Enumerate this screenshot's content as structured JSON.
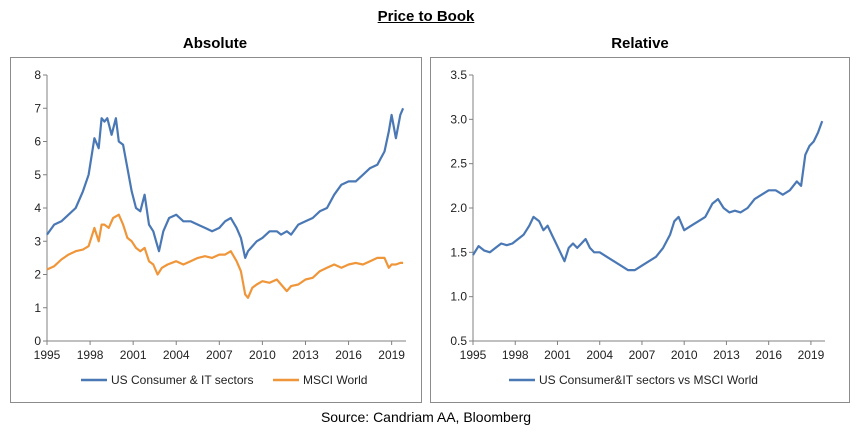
{
  "title": "Price to Book",
  "source": "Source: Candriam AA, Bloomberg",
  "colors": {
    "blue": "#4a78b5",
    "orange": "#f0963a",
    "axis": "#808080"
  },
  "chart_data": [
    {
      "type": "line",
      "title": "Absolute",
      "xlim": [
        1995,
        2020
      ],
      "ylim": [
        0,
        8
      ],
      "x_ticks": [
        1995,
        1998,
        2001,
        2004,
        2007,
        2010,
        2013,
        2016,
        2019
      ],
      "y_ticks": [
        0,
        1,
        2,
        3,
        4,
        5,
        6,
        7,
        8
      ],
      "y_tick_labels": [
        "0",
        "1",
        "2",
        "3",
        "4",
        "5",
        "6",
        "7",
        "8"
      ],
      "legend": "bottom",
      "grid": false,
      "series": [
        {
          "name": "US Consumer & IT sectors",
          "color": "#4a78b5",
          "x": [
            1995.0,
            1995.5,
            1996.0,
            1996.5,
            1997.0,
            1997.5,
            1997.9,
            1998.3,
            1998.6,
            1998.8,
            1999.0,
            1999.2,
            1999.5,
            1999.8,
            2000.0,
            2000.3,
            2000.6,
            2000.9,
            2001.2,
            2001.5,
            2001.8,
            2002.1,
            2002.4,
            2002.6,
            2002.8,
            2003.1,
            2003.5,
            2004.0,
            2004.5,
            2005.0,
            2005.5,
            2006.0,
            2006.5,
            2007.0,
            2007.4,
            2007.8,
            2008.2,
            2008.5,
            2008.8,
            2009.0,
            2009.2,
            2009.6,
            2010.0,
            2010.5,
            2011.0,
            2011.3,
            2011.7,
            2012.0,
            2012.5,
            2013.0,
            2013.5,
            2014.0,
            2014.5,
            2015.0,
            2015.5,
            2016.0,
            2016.5,
            2017.0,
            2017.5,
            2018.0,
            2018.5,
            2018.8,
            2019.0,
            2019.3,
            2019.6,
            2019.8
          ],
          "values": [
            3.2,
            3.5,
            3.6,
            3.8,
            4.0,
            4.5,
            5.0,
            6.1,
            5.8,
            6.7,
            6.6,
            6.7,
            6.2,
            6.7,
            6.0,
            5.9,
            5.2,
            4.5,
            4.0,
            3.9,
            4.4,
            3.5,
            3.3,
            3.0,
            2.7,
            3.3,
            3.7,
            3.8,
            3.6,
            3.6,
            3.5,
            3.4,
            3.3,
            3.4,
            3.6,
            3.7,
            3.4,
            3.1,
            2.5,
            2.7,
            2.8,
            3.0,
            3.1,
            3.3,
            3.3,
            3.2,
            3.3,
            3.2,
            3.5,
            3.6,
            3.7,
            3.9,
            4.0,
            4.4,
            4.7,
            4.8,
            4.8,
            5.0,
            5.2,
            5.3,
            5.7,
            6.3,
            6.8,
            6.1,
            6.8,
            7.0
          ]
        },
        {
          "name": "MSCI World",
          "color": "#f0963a",
          "x": [
            1995.0,
            1995.5,
            1996.0,
            1996.5,
            1997.0,
            1997.5,
            1997.9,
            1998.3,
            1998.6,
            1998.8,
            1999.0,
            1999.3,
            1999.6,
            2000.0,
            2000.3,
            2000.6,
            2000.9,
            2001.2,
            2001.5,
            2001.8,
            2002.1,
            2002.4,
            2002.7,
            2003.0,
            2003.4,
            2004.0,
            2004.5,
            2005.0,
            2005.5,
            2006.0,
            2006.5,
            2007.0,
            2007.4,
            2007.8,
            2008.2,
            2008.5,
            2008.8,
            2009.0,
            2009.3,
            2009.6,
            2010.0,
            2010.5,
            2011.0,
            2011.3,
            2011.7,
            2012.0,
            2012.5,
            2013.0,
            2013.5,
            2014.0,
            2014.5,
            2015.0,
            2015.5,
            2016.0,
            2016.5,
            2017.0,
            2017.5,
            2018.0,
            2018.5,
            2018.8,
            2019.0,
            2019.3,
            2019.6,
            2019.8
          ],
          "values": [
            2.15,
            2.25,
            2.45,
            2.6,
            2.7,
            2.75,
            2.85,
            3.4,
            3.0,
            3.5,
            3.5,
            3.4,
            3.7,
            3.8,
            3.5,
            3.1,
            3.0,
            2.8,
            2.7,
            2.8,
            2.4,
            2.3,
            2.0,
            2.2,
            2.3,
            2.4,
            2.3,
            2.4,
            2.5,
            2.55,
            2.5,
            2.6,
            2.6,
            2.7,
            2.4,
            2.1,
            1.4,
            1.3,
            1.6,
            1.7,
            1.8,
            1.75,
            1.85,
            1.7,
            1.5,
            1.65,
            1.7,
            1.85,
            1.9,
            2.1,
            2.2,
            2.3,
            2.2,
            2.3,
            2.35,
            2.3,
            2.4,
            2.5,
            2.5,
            2.2,
            2.3,
            2.3,
            2.35,
            2.35
          ]
        }
      ]
    },
    {
      "type": "line",
      "title": "Relative",
      "xlim": [
        1995,
        2020
      ],
      "ylim": [
        0.5,
        3.5
      ],
      "x_ticks": [
        1995,
        1998,
        2001,
        2004,
        2007,
        2010,
        2013,
        2016,
        2019
      ],
      "y_ticks": [
        0.5,
        1.0,
        1.5,
        2.0,
        2.5,
        3.0,
        3.5
      ],
      "y_tick_labels": [
        "0.5",
        "1.0",
        "1.5",
        "2.0",
        "2.5",
        "3.0",
        "3.5"
      ],
      "legend": "bottom",
      "grid": false,
      "series": [
        {
          "name": "US Consumer&IT sectors vs MSCI World",
          "color": "#4a78b5",
          "x": [
            1995.0,
            1995.4,
            1995.8,
            1996.2,
            1996.6,
            1997.0,
            1997.4,
            1997.8,
            1998.2,
            1998.6,
            1999.0,
            1999.3,
            1999.7,
            2000.0,
            2000.3,
            2000.6,
            2000.9,
            2001.2,
            2001.5,
            2001.8,
            2002.1,
            2002.4,
            2002.7,
            2003.0,
            2003.3,
            2003.6,
            2004.0,
            2004.5,
            2005.0,
            2005.5,
            2006.0,
            2006.5,
            2007.0,
            2007.5,
            2008.0,
            2008.5,
            2009.0,
            2009.3,
            2009.6,
            2010.0,
            2010.5,
            2011.0,
            2011.5,
            2012.0,
            2012.4,
            2012.8,
            2013.2,
            2013.6,
            2014.0,
            2014.5,
            2015.0,
            2015.5,
            2016.0,
            2016.5,
            2017.0,
            2017.5,
            2018.0,
            2018.3,
            2018.6,
            2018.9,
            2019.2,
            2019.5,
            2019.8
          ],
          "values": [
            1.47,
            1.57,
            1.52,
            1.5,
            1.55,
            1.6,
            1.58,
            1.6,
            1.65,
            1.7,
            1.8,
            1.9,
            1.85,
            1.75,
            1.8,
            1.7,
            1.6,
            1.5,
            1.4,
            1.55,
            1.6,
            1.55,
            1.6,
            1.65,
            1.55,
            1.5,
            1.5,
            1.45,
            1.4,
            1.35,
            1.3,
            1.3,
            1.35,
            1.4,
            1.45,
            1.55,
            1.7,
            1.85,
            1.9,
            1.75,
            1.8,
            1.85,
            1.9,
            2.05,
            2.1,
            2.0,
            1.95,
            1.97,
            1.95,
            2.0,
            2.1,
            2.15,
            2.2,
            2.2,
            2.15,
            2.2,
            2.3,
            2.25,
            2.6,
            2.7,
            2.75,
            2.85,
            2.98
          ]
        }
      ]
    }
  ]
}
